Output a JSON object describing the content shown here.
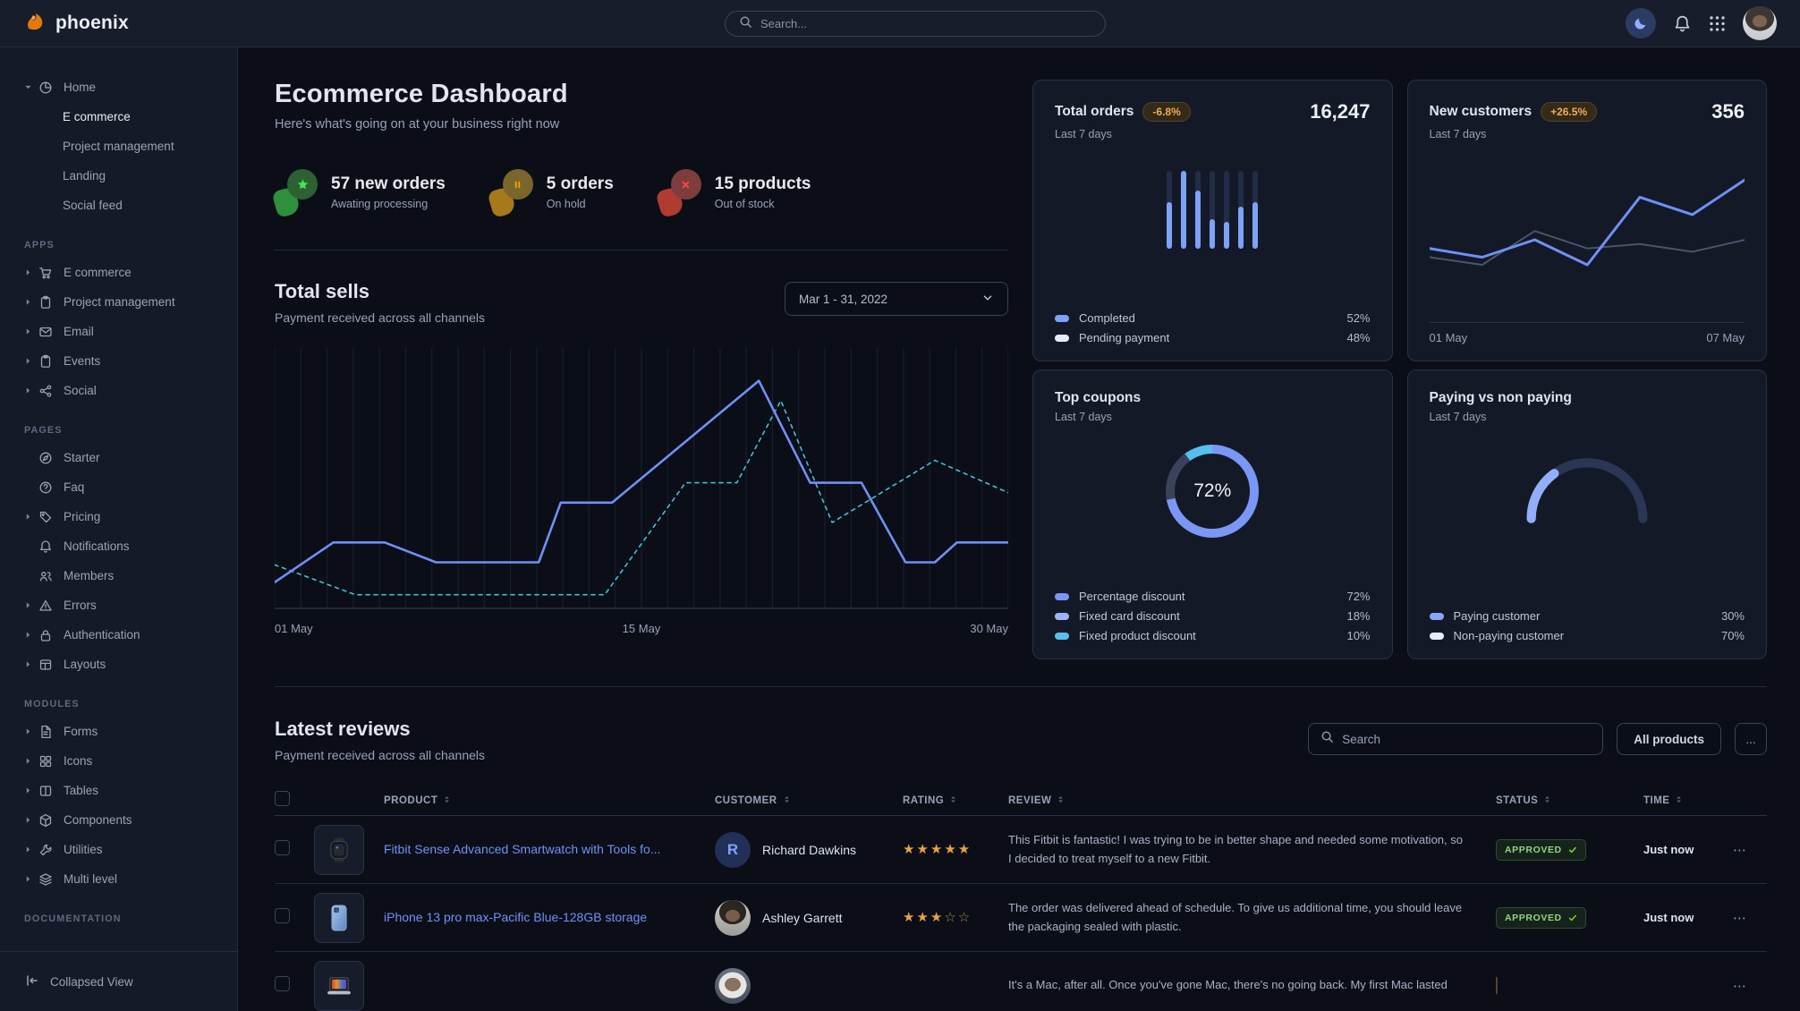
{
  "navbar": {
    "brand": "phoenix",
    "search_placeholder": "Search..."
  },
  "sidebar": {
    "home": {
      "label": "Home",
      "icon": "pie",
      "children": [
        {
          "label": "E commerce",
          "active": true
        },
        {
          "label": "Project management",
          "active": false
        },
        {
          "label": "Landing",
          "active": false
        },
        {
          "label": "Social feed",
          "active": false
        }
      ]
    },
    "sections": [
      {
        "label": "APPS",
        "items": [
          {
            "label": "E commerce",
            "icon": "cart",
            "caret": true
          },
          {
            "label": "Project management",
            "icon": "clipboard",
            "caret": true
          },
          {
            "label": "Email",
            "icon": "envelope",
            "caret": true
          },
          {
            "label": "Events",
            "icon": "clipboard",
            "caret": true
          },
          {
            "label": "Social",
            "icon": "share",
            "caret": true
          }
        ]
      },
      {
        "label": "PAGES",
        "items": [
          {
            "label": "Starter",
            "icon": "compass",
            "caret": false
          },
          {
            "label": "Faq",
            "icon": "question",
            "caret": false
          },
          {
            "label": "Pricing",
            "icon": "tag",
            "caret": true
          },
          {
            "label": "Notifications",
            "icon": "bell",
            "caret": false
          },
          {
            "label": "Members",
            "icon": "users",
            "caret": false
          },
          {
            "label": "Errors",
            "icon": "warning",
            "caret": true
          },
          {
            "label": "Authentication",
            "icon": "lock",
            "caret": true
          },
          {
            "label": "Layouts",
            "icon": "layout",
            "caret": true
          }
        ]
      },
      {
        "label": "MODULES",
        "items": [
          {
            "label": "Forms",
            "icon": "file",
            "caret": true
          },
          {
            "label": "Icons",
            "icon": "grid",
            "caret": true
          },
          {
            "label": "Tables",
            "icon": "columns",
            "caret": true
          },
          {
            "label": "Components",
            "icon": "cube",
            "caret": true
          },
          {
            "label": "Utilities",
            "icon": "wrench",
            "caret": true
          },
          {
            "label": "Multi level",
            "icon": "layers",
            "caret": true
          }
        ]
      },
      {
        "label": "DOCUMENTATION",
        "items": []
      }
    ],
    "footer_label": "Collapsed View"
  },
  "page": {
    "title": "Ecommerce Dashboard",
    "subtitle": "Here's what's going on at your business right now"
  },
  "stats": [
    {
      "value": "57 new orders",
      "caption": "Awating processing",
      "variant": "success"
    },
    {
      "value": "5 orders",
      "caption": "On hold",
      "variant": "warning"
    },
    {
      "value": "15 products",
      "caption": "Out of stock",
      "variant": "danger"
    }
  ],
  "total_sells": {
    "title": "Total sells",
    "subtitle": "Payment received across all channels",
    "date_range": "Mar 1 - 31, 2022",
    "chart_data": {
      "type": "line",
      "gridlines": 28,
      "x_ticks": [
        "01 May",
        "15 May",
        "30 May"
      ],
      "series": [
        {
          "name": "current",
          "style": "solid",
          "color": "#6f90f6",
          "x_pct": [
            0,
            8,
            15,
            22,
            36,
            39,
            46,
            66,
            73,
            80,
            86,
            90,
            93,
            100
          ],
          "y_pct": [
            92,
            76,
            76,
            84,
            84,
            60,
            60,
            11,
            52,
            52,
            84,
            84,
            76,
            76
          ]
        },
        {
          "name": "previous",
          "style": "dashed",
          "color": "#3fc1da",
          "x_pct": [
            0,
            11,
            45,
            56,
            63,
            69,
            76,
            90,
            100
          ],
          "y_pct": [
            85,
            97,
            97,
            52,
            52,
            19,
            68,
            43,
            56
          ]
        }
      ]
    }
  },
  "summary_cards": {
    "total_orders": {
      "title": "Total orders",
      "badge": "-6.8%",
      "period": "Last 7 days",
      "value": "16,247",
      "legend": [
        {
          "label": "Completed",
          "value": "52%",
          "color": "#7ea2f8"
        },
        {
          "label": "Pending payment",
          "value": "48%",
          "color": "#e5ecff"
        }
      ],
      "chart_data": {
        "type": "bar",
        "completed_pct": [
          60,
          100,
          75,
          38,
          35,
          54,
          60
        ],
        "bar_bg": "#232c47",
        "bar_fill": "#7ea2f8"
      }
    },
    "new_customers": {
      "title": "New customers",
      "badge": "+26.5%",
      "period": "Last 7 days",
      "value": "356",
      "x_ticks": [
        "01 May",
        "07 May"
      ],
      "chart_data": {
        "type": "line",
        "series": [
          {
            "name": "previous",
            "color": "#4a546c",
            "width": 2,
            "y_pct": [
              84,
              91,
              60,
              76,
              72,
              79,
              68
            ]
          },
          {
            "name": "current",
            "color": "#6f90f6",
            "width": 3,
            "y_pct": [
              76,
              84,
              68,
              91,
              29,
              45,
              13
            ]
          }
        ]
      }
    },
    "top_coupons": {
      "title": "Top coupons",
      "period": "Last 7 days",
      "center_value": "72%",
      "legend": [
        {
          "label": "Percentage discount",
          "value": "72%",
          "color": "#7b97f5"
        },
        {
          "label": "Fixed card discount",
          "value": "18%",
          "color": "#9fb4f7"
        },
        {
          "label": "Fixed product discount",
          "value": "10%",
          "color": "#55c0ee"
        }
      ],
      "chart_data": {
        "type": "donut",
        "segments": [
          {
            "label": "Percentage discount",
            "pct": 72,
            "color": "#7b97f5"
          },
          {
            "label": "Fixed card discount",
            "pct": 18,
            "color": "#3a4359"
          },
          {
            "label": "Fixed product discount",
            "pct": 10,
            "color": "#55c0ee"
          }
        ]
      }
    },
    "paying_vs_non_paying": {
      "title": "Paying vs non paying",
      "period": "Last 7 days",
      "legend": [
        {
          "label": "Paying customer",
          "value": "30%",
          "color": "#88a6f8"
        },
        {
          "label": "Non-paying customer",
          "value": "70%",
          "color": "#e5ecff"
        }
      ],
      "chart_data": {
        "type": "gauge",
        "paying_pct": 30,
        "paying_color": "#92aef9",
        "non_paying_color": "#2b3554"
      }
    }
  },
  "reviews": {
    "title": "Latest reviews",
    "subtitle": "Payment received across all channels",
    "search_placeholder": "Search",
    "filter_label": "All products",
    "more_label": "...",
    "columns": [
      "PRODUCT",
      "CUSTOMER",
      "RATING",
      "REVIEW",
      "STATUS",
      "TIME"
    ],
    "rows": [
      {
        "product": "Fitbit Sense Advanced Smartwatch with Tools fo...",
        "thumb": "watch",
        "customer": "Richard Dawkins",
        "avatar": "initial",
        "avatar_initial": "R",
        "rating": 5,
        "review": "This Fitbit is fantastic! I was trying to be in better shape and needed some motivation, so I decided to treat myself to a new Fitbit.",
        "status": "APPROVED",
        "time": "Just now"
      },
      {
        "product": "iPhone 13 pro max-Pacific Blue-128GB storage",
        "thumb": "iphone",
        "customer": "Ashley Garrett",
        "avatar": "photo-1",
        "avatar_initial": "",
        "rating": 3,
        "review": "The order was delivered ahead of schedule. To give us additional time, you should leave the packaging sealed with plastic.",
        "status": "APPROVED",
        "time": "Just now"
      },
      {
        "product": "",
        "thumb": "macbook",
        "customer": "",
        "avatar": "photo-2",
        "avatar_initial": "",
        "rating": 0,
        "review": "It's a Mac, after all. Once you've gone Mac, there's no going back. My first Mac lasted",
        "status": "",
        "status_partial": true,
        "time": ""
      }
    ]
  }
}
